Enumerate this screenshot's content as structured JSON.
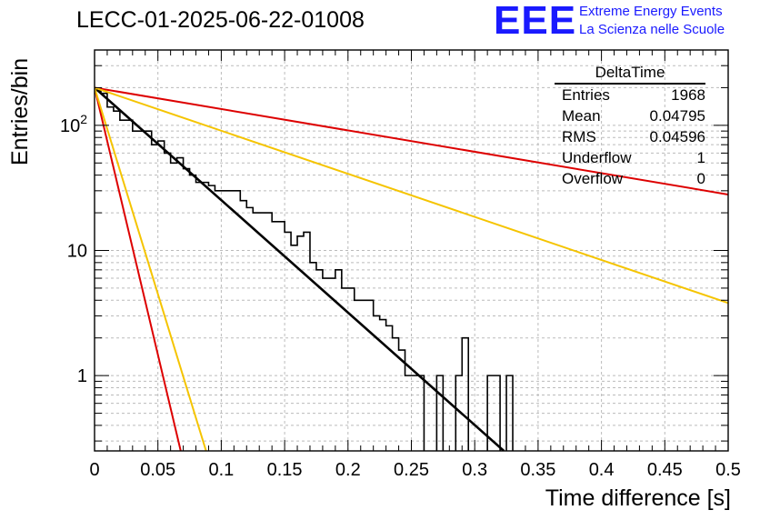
{
  "header": {
    "title": "LECC-01-2025-06-22-01008",
    "logo_text": "EEE",
    "logo_line1": "Extreme Energy Events",
    "logo_line2": "La Scienza nelle Scuole"
  },
  "stats": {
    "title": "DeltaTime",
    "rows": [
      {
        "label": "Entries",
        "value": "1968"
      },
      {
        "label": "Mean",
        "value": "0.04795"
      },
      {
        "label": "RMS",
        "value": "0.04596"
      },
      {
        "label": "Underflow",
        "value": "1"
      },
      {
        "label": "Overflow",
        "value": "0"
      }
    ]
  },
  "chart_data": {
    "type": "bar",
    "subtype": "histogram-step",
    "xlabel": "Time difference [s]",
    "ylabel": "Entries/bin",
    "xlim": [
      0,
      0.5
    ],
    "ylim": [
      0.25,
      400
    ],
    "log_y": true,
    "grid": true,
    "x_ticks": [
      "0",
      "0.05",
      "0.1",
      "0.15",
      "0.2",
      "0.25",
      "0.3",
      "0.35",
      "0.4",
      "0.45",
      "0.5"
    ],
    "x_tick_values": [
      0,
      0.05,
      0.1,
      0.15,
      0.2,
      0.25,
      0.3,
      0.35,
      0.4,
      0.45,
      0.5
    ],
    "y_ticks": [
      "1",
      "10",
      "10^2"
    ],
    "y_tick_values": [
      1,
      10,
      100
    ],
    "bin_width": 0.005,
    "bin_values": [
      190,
      180,
      140,
      130,
      110,
      110,
      90,
      90,
      90,
      70,
      75,
      60,
      50,
      55,
      45,
      40,
      35,
      35,
      33,
      30,
      30,
      30,
      30,
      25,
      22,
      20,
      20,
      20,
      17,
      17,
      14,
      11,
      13,
      14,
      8,
      7,
      6,
      6,
      7,
      5,
      5,
      4,
      4,
      4,
      3,
      2.8,
      2.5,
      2.0,
      1.6,
      1.0,
      1.0,
      1.0,
      0,
      0,
      1.0,
      0,
      0,
      1.0,
      2.0,
      0,
      0,
      0,
      1.0,
      1.0,
      0,
      1.0,
      0,
      0,
      0,
      0,
      0,
      0,
      0,
      0,
      0,
      0,
      0,
      0,
      0,
      0,
      0,
      0,
      0,
      0,
      0,
      0,
      0,
      0,
      0,
      0,
      0,
      0,
      0,
      0,
      0,
      0,
      0,
      0,
      0,
      0
    ],
    "series": [
      {
        "kind": "fit",
        "color": "#000000",
        "points": [
          [
            0,
            200
          ],
          [
            0.323,
            0.25
          ]
        ]
      },
      {
        "kind": "line",
        "color": "#dd0000",
        "points": [
          [
            0,
            200
          ],
          [
            0.5,
            28
          ]
        ]
      },
      {
        "kind": "line",
        "color": "#f5c400",
        "points": [
          [
            0,
            200
          ],
          [
            0.5,
            3.8
          ]
        ]
      },
      {
        "kind": "line",
        "color": "#dd0000",
        "points": [
          [
            0,
            200
          ],
          [
            0.068,
            0.25
          ]
        ]
      },
      {
        "kind": "line",
        "color": "#f5c400",
        "points": [
          [
            0,
            200
          ],
          [
            0.088,
            0.25
          ]
        ]
      }
    ]
  }
}
